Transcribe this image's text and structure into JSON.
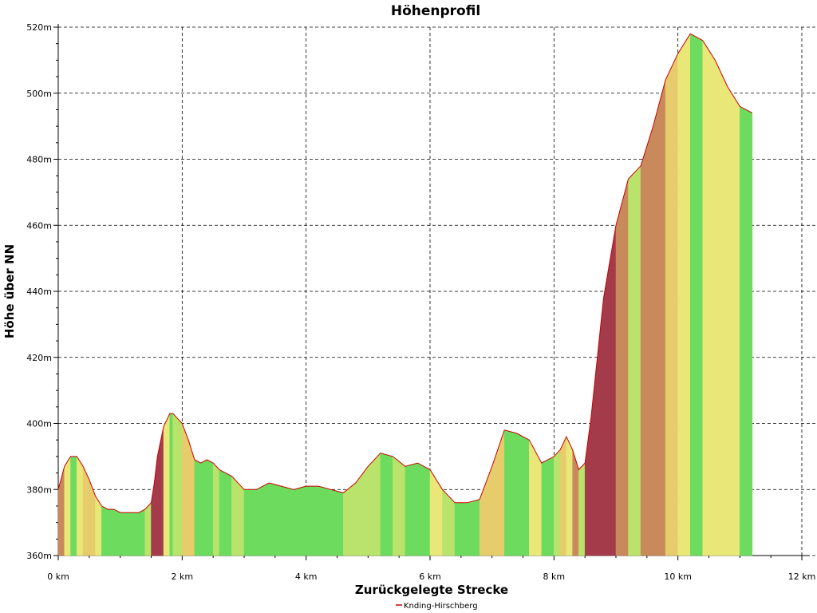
{
  "chart_data": {
    "type": "area",
    "title": "Höhenprofil",
    "xlabel": "Zurückgelegte Strecke",
    "ylabel": "Höhe über NN",
    "xlim": [
      0,
      12
    ],
    "ylim": [
      360,
      520
    ],
    "x_unit": "km",
    "y_unit": "m",
    "x_ticks": [
      "0 km",
      "2 km",
      "4 km",
      "6 km",
      "8 km",
      "10 km",
      "12 km"
    ],
    "y_ticks": [
      "360m",
      "380m",
      "400m",
      "420m",
      "440m",
      "460m",
      "480m",
      "500m",
      "520m"
    ],
    "grid": true,
    "legend_position": "bottom-center",
    "series": [
      {
        "name": "Knding-Hirschberg",
        "color": "#cc0000",
        "x": [
          0,
          0.1,
          0.2,
          0.3,
          0.4,
          0.5,
          0.6,
          0.7,
          0.8,
          0.9,
          1.0,
          1.1,
          1.2,
          1.3,
          1.4,
          1.5,
          1.55,
          1.6,
          1.7,
          1.8,
          1.85,
          1.9,
          2.0,
          2.1,
          2.2,
          2.3,
          2.4,
          2.5,
          2.6,
          2.7,
          2.8,
          3.0,
          3.2,
          3.4,
          3.6,
          3.8,
          4.0,
          4.2,
          4.4,
          4.6,
          4.8,
          5.0,
          5.2,
          5.4,
          5.6,
          5.8,
          6.0,
          6.2,
          6.4,
          6.6,
          6.8,
          7.0,
          7.2,
          7.4,
          7.6,
          7.8,
          8.0,
          8.1,
          8.2,
          8.3,
          8.4,
          8.5,
          8.6,
          8.8,
          9.0,
          9.2,
          9.4,
          9.6,
          9.8,
          10.0,
          10.2,
          10.4,
          10.6,
          10.8,
          11.0,
          11.2
        ],
        "y": [
          380,
          387,
          390,
          390,
          387,
          383,
          378,
          375,
          374,
          374,
          373,
          373,
          373,
          373,
          374,
          376,
          382,
          390,
          399,
          403,
          403,
          402,
          400,
          395,
          389,
          388,
          389,
          388,
          386,
          385,
          384,
          380,
          380,
          382,
          381,
          380,
          381,
          381,
          380,
          379,
          382,
          387,
          391,
          390,
          387,
          388,
          386,
          380,
          376,
          376,
          377,
          387,
          398,
          397,
          395,
          388,
          390,
          392,
          396,
          392,
          386,
          388,
          402,
          438,
          460,
          474,
          478,
          490,
          504,
          512,
          518,
          516,
          510,
          502,
          496,
          494
        ]
      }
    ]
  }
}
